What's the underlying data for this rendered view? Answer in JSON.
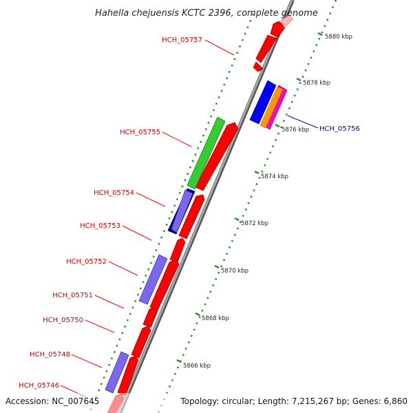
{
  "title": "Hahella chejuensis KCTC 2396, complete genome",
  "footer": {
    "accession": "Accession: NC_007645",
    "summary": "Topology: circular; Length: 7,215,267 bp; Genes: 6,860"
  },
  "scale_labels": [
    "5880 kbp",
    "5878 kbp",
    "5876 kbp",
    "5874 kbp",
    "5872 kbp",
    "5870 kbp",
    "5868 kbp",
    "5866 kbp"
  ],
  "gene_labels": [
    {
      "text": "HCH_05757",
      "color": "#cc0000"
    },
    {
      "text": "HCH_05755",
      "color": "#cc0000"
    },
    {
      "text": "HCH_05754",
      "color": "#cc0000"
    },
    {
      "text": "HCH_05753",
      "color": "#cc0000"
    },
    {
      "text": "HCH_05752",
      "color": "#cc0000"
    },
    {
      "text": "HCH_05751",
      "color": "#cc0000"
    },
    {
      "text": "HCH_05750",
      "color": "#cc0000"
    },
    {
      "text": "HCH_05748",
      "color": "#cc0000"
    },
    {
      "text": "HCH_05746",
      "color": "#cc0000"
    },
    {
      "text": "HCH_05756",
      "color": "#00008b"
    }
  ],
  "colors": {
    "cds_forward": "#ff0000",
    "cds_reverse": "#0000ff",
    "feature_green": "#33cc33",
    "feature_navy": "#000080",
    "feature_lavender": "#7b68ee",
    "feature_orange": "#ff9900",
    "feature_magenta": "#ff00cc",
    "backbone": "#8c8c8c",
    "tick_green": "#2e8b2e"
  }
}
